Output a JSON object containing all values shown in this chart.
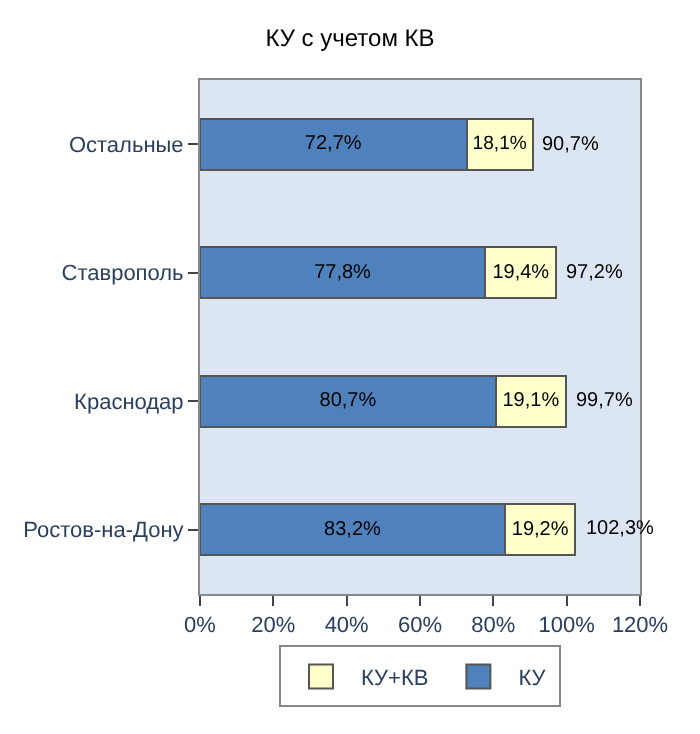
{
  "chart_data": {
    "type": "bar",
    "orientation": "horizontal",
    "stacked": true,
    "title": "КУ с учетом КВ",
    "categories": [
      "Остальные",
      "Ставрополь",
      "Краснодар",
      "Ростов-на-Дону"
    ],
    "series": [
      {
        "name": "КУ",
        "color": "#4f81bd",
        "values": [
          72.7,
          77.8,
          80.7,
          83.2
        ],
        "value_labels": [
          "72,7%",
          "77,8%",
          "80,7%",
          "83,2%"
        ]
      },
      {
        "name": "КУ+КВ",
        "color": "#ffffcc",
        "values": [
          18.1,
          19.4,
          19.1,
          19.2
        ],
        "value_labels": [
          "18,1%",
          "19,4%",
          "19,1%",
          "19,2%"
        ]
      }
    ],
    "totals": [
      "90,7%",
      "97,2%",
      "99,7%",
      "102,3%"
    ],
    "xlim": [
      0,
      120
    ],
    "xticks": [
      {
        "value": 0,
        "label": "0%"
      },
      {
        "value": 20,
        "label": "20%"
      },
      {
        "value": 40,
        "label": "40%"
      },
      {
        "value": 60,
        "label": "60%"
      },
      {
        "value": 80,
        "label": "80%"
      },
      {
        "value": 100,
        "label": "100%"
      },
      {
        "value": 120,
        "label": "120%"
      }
    ],
    "grid": false,
    "legend": "bottom"
  }
}
